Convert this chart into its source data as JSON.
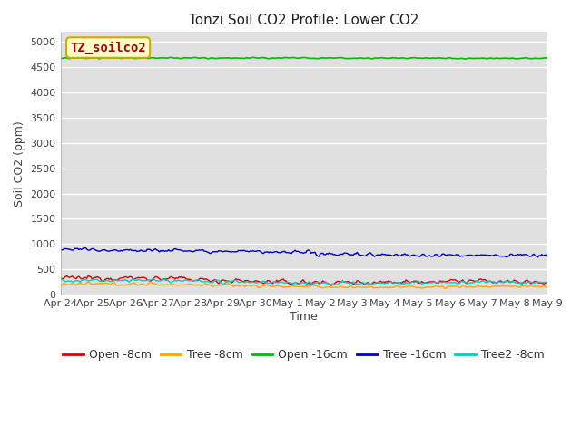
{
  "title": "Tonzi Soil CO2 Profile: Lower CO2",
  "ylabel": "Soil CO2 (ppm)",
  "xlabel": "Time",
  "watermark_text": "TZ_soilco2",
  "xtick_labels": [
    "Apr 24",
    "Apr 25",
    "Apr 26",
    "Apr 27",
    "Apr 28",
    "Apr 29",
    "Apr 30",
    "May 1",
    "May 2",
    "May 3",
    "May 4",
    "May 5",
    "May 6",
    "May 7",
    "May 8",
    "May 9"
  ],
  "ylim": [
    0,
    5200
  ],
  "yticks": [
    0,
    500,
    1000,
    1500,
    2000,
    2500,
    3000,
    3500,
    4000,
    4500,
    5000
  ],
  "series_order": [
    "Open -8cm",
    "Tree -8cm",
    "Open -16cm",
    "Tree -16cm",
    "Tree2 -8cm"
  ],
  "series": {
    "Open -8cm": {
      "color": "#dd0000",
      "base": 310,
      "noise": 70,
      "trend": -90,
      "freq": 1.4,
      "lw": 1.0
    },
    "Tree -8cm": {
      "color": "#ffa500",
      "base": 195,
      "noise": 45,
      "trend": -55,
      "freq": 1.2,
      "lw": 1.0
    },
    "Open -16cm": {
      "color": "#00bb00",
      "base": 4680,
      "noise": 18,
      "trend": -5,
      "freq": 0.4,
      "lw": 1.2
    },
    "Tree -16cm": {
      "color": "#0000bb",
      "base": 880,
      "noise": 55,
      "trend": -110,
      "freq": 1.0,
      "lw": 1.0
    },
    "Tree2 -8cm": {
      "color": "#00cccc",
      "base": 265,
      "noise": 45,
      "trend": -45,
      "freq": 1.3,
      "lw": 1.0
    }
  },
  "n_points": 370,
  "fig_bg": "#ffffff",
  "plot_bg": "#e0e0e0",
  "grid_color": "#ffffff",
  "title_fontsize": 11,
  "label_fontsize": 9,
  "tick_fontsize": 8,
  "legend_fontsize": 9,
  "watermark_facecolor": "#ffffcc",
  "watermark_edgecolor": "#ccaa00",
  "watermark_textcolor": "#aa0000",
  "watermark_fontsize": 10
}
